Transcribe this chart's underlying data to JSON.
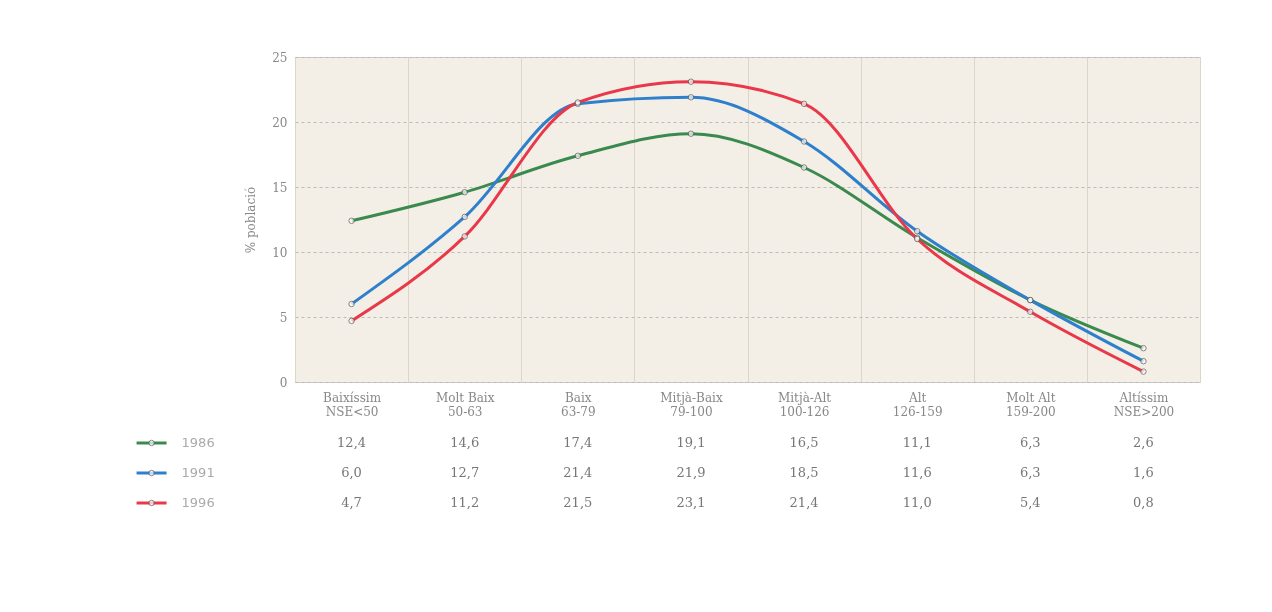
{
  "chart_data": {
    "type": "line",
    "ylabel": "% població",
    "categories": [
      "Baixíssim NSE<50",
      "Molt Baix 50-63",
      "Baix 63-79",
      "Mitjà-Baix 79-100",
      "Mitjà-Alt 100-126",
      "Alt 126-159",
      "Molt Alt 159-200",
      "Altíssim NSE>200"
    ],
    "series": [
      {
        "name": "1986",
        "color": "#3a8a4f",
        "values": [
          12.4,
          14.6,
          17.4,
          19.1,
          16.5,
          11.1,
          6.3,
          2.6
        ],
        "value_labels": [
          "12,4",
          "14,6",
          "17,4",
          "19,1",
          "16,5",
          "11,1",
          "6,3",
          "2,6"
        ]
      },
      {
        "name": "1991",
        "color": "#2e7fcc",
        "values": [
          6.0,
          12.7,
          21.4,
          21.9,
          18.5,
          11.6,
          6.3,
          1.6
        ],
        "value_labels": [
          "6,0",
          "12,7",
          "21,4",
          "21,9",
          "18,5",
          "11,6",
          "6,3",
          "1,6"
        ]
      },
      {
        "name": "1996",
        "color": "#e8384a",
        "values": [
          4.7,
          11.2,
          21.5,
          23.1,
          21.4,
          11.0,
          5.4,
          0.8
        ],
        "value_labels": [
          "4,7",
          "11,2",
          "21,5",
          "23,1",
          "21,4",
          "11,0",
          "5,4",
          "0,8"
        ]
      }
    ],
    "ylim": [
      0,
      25
    ],
    "yticks": [
      0,
      5,
      10,
      15,
      20,
      25
    ],
    "grid": true,
    "marker": "circle",
    "line_style": "solid",
    "legend": "bottom left"
  }
}
